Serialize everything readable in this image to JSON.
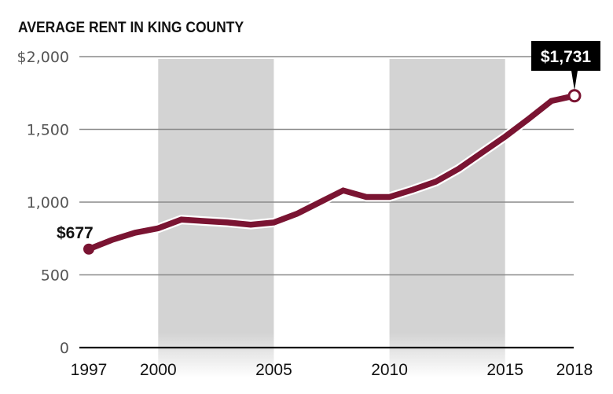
{
  "title": "AVERAGE RENT IN KING COUNTY",
  "colors": {
    "line": "#7a1432",
    "recession_band": "#d3d3d3",
    "gridline": "#8a8a8a",
    "baseline": "#111111",
    "callout_bg": "#000000",
    "callout_text": "#ffffff"
  },
  "annotations": {
    "start_label": "$677",
    "end_label": "$1,731"
  },
  "chart_data": {
    "type": "line",
    "title": "AVERAGE RENT IN KING COUNTY",
    "xlabel": "",
    "ylabel": "",
    "x": [
      1997,
      1998,
      1999,
      2000,
      2001,
      2002,
      2003,
      2004,
      2005,
      2006,
      2007,
      2008,
      2009,
      2010,
      2011,
      2012,
      2013,
      2014,
      2015,
      2016,
      2017,
      2018
    ],
    "series": [
      {
        "name": "Average rent",
        "values": [
          677,
          740,
          790,
          820,
          880,
          870,
          860,
          845,
          860,
          920,
          1000,
          1080,
          1035,
          1035,
          1085,
          1140,
          1230,
          1340,
          1450,
          1570,
          1695,
          1731
        ]
      }
    ],
    "ylim": [
      0,
      2000
    ],
    "xlim": [
      1997,
      2018
    ],
    "y_ticks": [
      {
        "value": 2000,
        "label": "$2,000"
      },
      {
        "value": 1500,
        "label": "1,500"
      },
      {
        "value": 1000,
        "label": "1,000"
      },
      {
        "value": 500,
        "label": "500"
      },
      {
        "value": 0,
        "label": "0"
      }
    ],
    "x_ticks": [
      {
        "value": 1997,
        "label": "1997"
      },
      {
        "value": 2000,
        "label": "2000"
      },
      {
        "value": 2005,
        "label": "2005"
      },
      {
        "value": 2010,
        "label": "2010"
      },
      {
        "value": 2015,
        "label": "2015"
      },
      {
        "value": 2018,
        "label": "2018"
      }
    ],
    "shaded_bands": [
      {
        "from": 2000,
        "to": 2005
      },
      {
        "from": 2010,
        "to": 2015
      }
    ],
    "annotations": [
      {
        "x": 1997,
        "y": 677,
        "text": "$677"
      },
      {
        "x": 2018,
        "y": 1731,
        "text": "$1,731",
        "style": "callout"
      }
    ],
    "grid": true,
    "legend": "none"
  }
}
